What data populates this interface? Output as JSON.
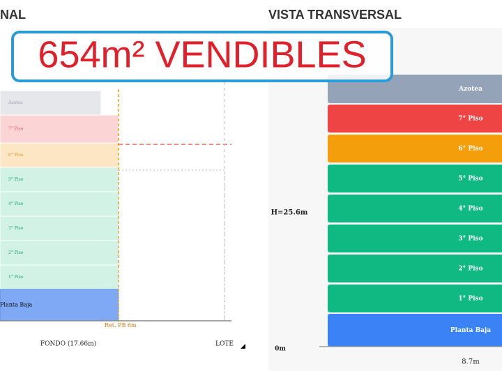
{
  "left_panel": {
    "title": "NAL",
    "floors": [
      "Azotea",
      "7° Piso",
      "6° Piso",
      "5° Piso",
      "4° Piso",
      "3° Piso",
      "2° Piso",
      "1° Piso",
      "Planta Baja"
    ],
    "setback_label": "Ret. PB 6m",
    "depth_label": "FONDO (17.66m)",
    "lot_label": "LOTE"
  },
  "right_panel": {
    "title": "VISTA TRANSVERSAL",
    "floors": [
      "Azotea",
      "7° Piso",
      "6° Piso",
      "5° Piso",
      "4° Piso",
      "3° Piso",
      "2° Piso",
      "1° Piso",
      "Planta Baja"
    ],
    "height_label": "H=25.6m",
    "base_label": "0m",
    "width_label": "8.7m"
  },
  "overlay": {
    "text": "654m² VENDIBLES"
  }
}
